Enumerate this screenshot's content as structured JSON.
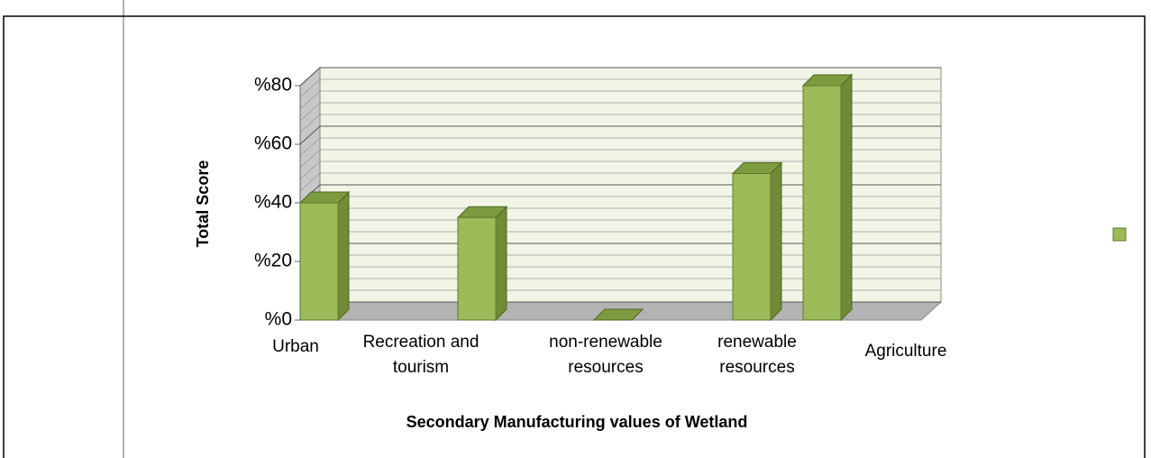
{
  "chart_data": {
    "type": "bar3d",
    "x_label": "Secondary Manufacturing values of Wetland",
    "y_label": "Total Score",
    "categories": [
      "Urban",
      "Recreation and tourism",
      "non-renewable resources",
      "renewable resources",
      "Agriculture"
    ],
    "values": [
      40,
      35,
      0,
      50,
      80
    ],
    "color": "#9bbb59",
    "ylim": [
      0,
      80
    ],
    "yticks": [
      {
        "value": 0,
        "label": "%0"
      },
      {
        "value": 20,
        "label": "%20"
      },
      {
        "value": 40,
        "label": "%40"
      },
      {
        "value": 60,
        "label": "%60"
      },
      {
        "value": 80,
        "label": "%80"
      }
    ],
    "grid": true,
    "legend": "right"
  }
}
